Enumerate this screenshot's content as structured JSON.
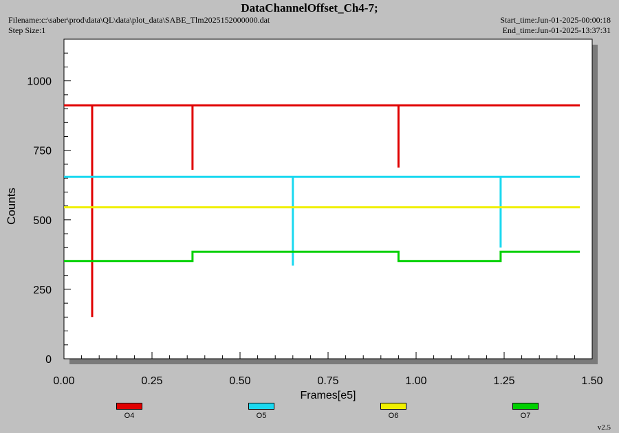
{
  "header": {
    "title": "DataChannelOffset_Ch4-7;",
    "filename": "Filename:c:\\saber\\prod\\data\\QL\\data\\plot_data\\SABE_Tlm2025152000000.dat",
    "step_size": "Step Size:1",
    "start_time": "Start_time:Jun-01-2025-00:00:18",
    "end_time": "End_time:Jun-01-2025-13:37:31",
    "version": "v2.5"
  },
  "chart_data": {
    "type": "line",
    "xlabel": "Frames[e5]",
    "ylabel": "Counts",
    "xlim": [
      0,
      1.5
    ],
    "ylim": [
      0,
      1150
    ],
    "xticks": [
      "0.00",
      "0.25",
      "0.50",
      "0.75",
      "1.00",
      "1.25",
      "1.50"
    ],
    "yticks": [
      "0",
      "250",
      "500",
      "750",
      "1000"
    ],
    "grid": false,
    "legend_position": "bottom",
    "series": [
      {
        "name": "O4",
        "color": "#e00000",
        "x": [
          0,
          0.08,
          0.08,
          0.08,
          0.365,
          0.365,
          0.365,
          0.95,
          0.95,
          0.95,
          1.465
        ],
        "y": [
          912,
          912,
          150,
          912,
          912,
          680,
          912,
          912,
          688,
          912,
          912
        ]
      },
      {
        "name": "O5",
        "color": "#1ad8f0",
        "x": [
          0,
          0.65,
          0.65,
          0.65,
          1.24,
          1.24,
          1.24,
          1.465
        ],
        "y": [
          655,
          655,
          335,
          655,
          655,
          400,
          655,
          655
        ]
      },
      {
        "name": "O6",
        "color": "#f0f000",
        "x": [
          0,
          1.465
        ],
        "y": [
          545,
          545
        ]
      },
      {
        "name": "O7",
        "color": "#00d000",
        "x": [
          0,
          0.365,
          0.365,
          0.95,
          0.95,
          1.24,
          1.24,
          1.465
        ],
        "y": [
          352,
          352,
          385,
          385,
          352,
          352,
          385,
          385
        ]
      }
    ]
  }
}
